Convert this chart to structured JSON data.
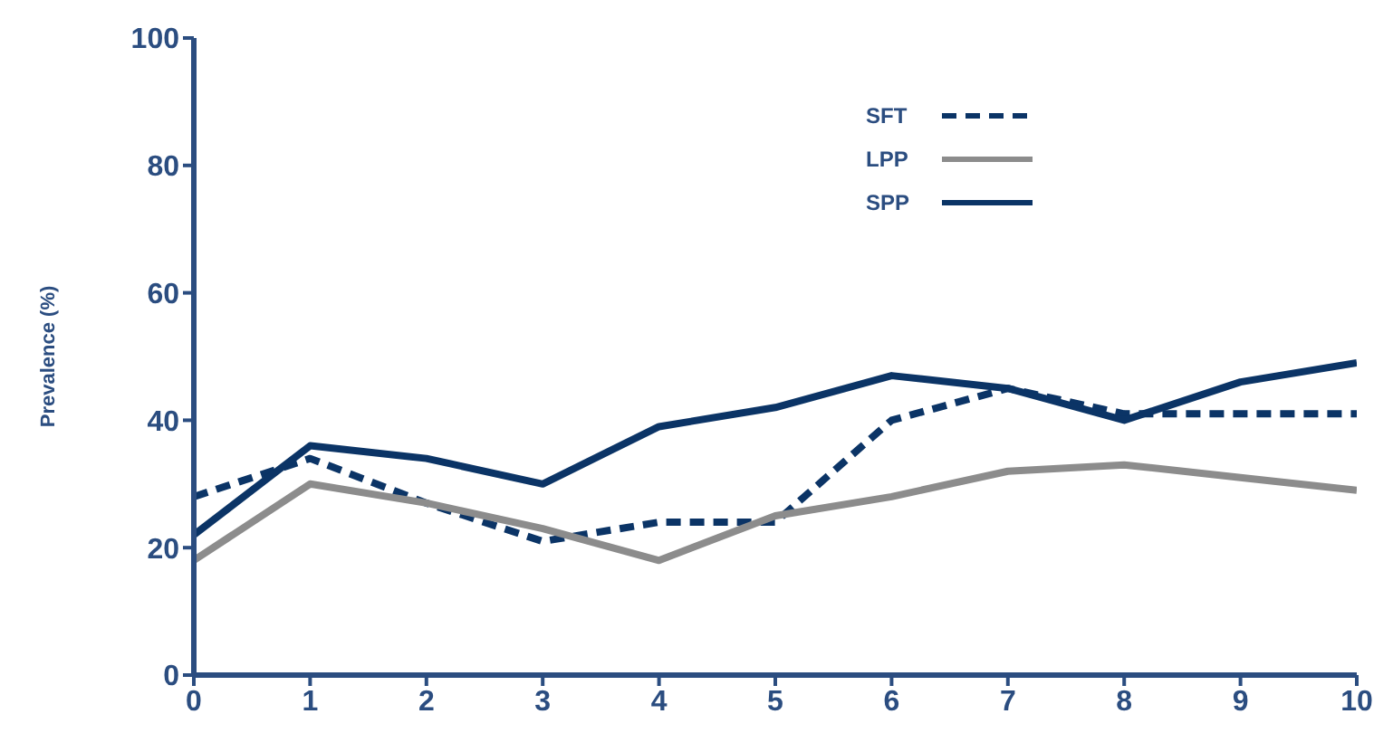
{
  "chart_data": {
    "type": "line",
    "ylabel": "Prevalence (%)",
    "x": [
      0,
      1,
      2,
      3,
      4,
      5,
      6,
      7,
      8,
      9,
      10
    ],
    "xlim": [
      0,
      10
    ],
    "xticks": [
      0,
      1,
      2,
      3,
      4,
      5,
      6,
      7,
      8,
      9,
      10
    ],
    "ylim": [
      0,
      100
    ],
    "yticks": [
      0,
      20,
      40,
      60,
      80,
      100
    ],
    "grid": false,
    "legend": "top right",
    "marker": "none",
    "series": [
      {
        "name": "SFT",
        "color": "#0b3466",
        "line_style": "dashed",
        "values": [
          28,
          34,
          27,
          21,
          24,
          24,
          40,
          45,
          41,
          41,
          41
        ]
      },
      {
        "name": "LPP",
        "color": "#8c8c8c",
        "line_style": "solid",
        "values": [
          18,
          30,
          27,
          23,
          18,
          25,
          28,
          32,
          33,
          31,
          29
        ]
      },
      {
        "name": "SPP",
        "color": "#0b3466",
        "line_style": "solid",
        "values": [
          22,
          36,
          34,
          30,
          39,
          42,
          47,
          45,
          40,
          46,
          49
        ]
      }
    ]
  }
}
